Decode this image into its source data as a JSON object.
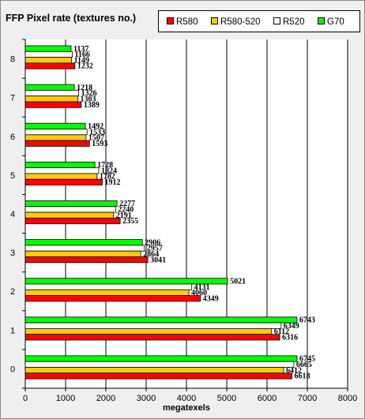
{
  "chart_data": {
    "type": "bar",
    "orientation": "horizontal",
    "title": "FFP Pixel rate (textures no.)",
    "xlabel": "megatexels",
    "ylabel": "",
    "xlim": [
      0,
      8000
    ],
    "xticks": [
      0,
      1000,
      2000,
      3000,
      4000,
      5000,
      6000,
      7000,
      8000
    ],
    "grid": "vertical",
    "legend_position": "top-right",
    "categories": [
      "0",
      "1",
      "2",
      "3",
      "4",
      "5",
      "6",
      "7",
      "8"
    ],
    "series": [
      {
        "name": "R580",
        "color": "#ff0000",
        "values": [
          6618,
          6316,
          4349,
          3041,
          2355,
          1912,
          1593,
          1389,
          1232
        ]
      },
      {
        "name": "R580-520",
        "color": "#ffcc00",
        "values": [
          6412,
          6112,
          4060,
          2864,
          2191,
          1782,
          1507,
          1303,
          1149
        ]
      },
      {
        "name": "R520",
        "color": "#ffffff",
        "values": [
          6665,
          6349,
          4131,
          2957,
          2240,
          1824,
          1533,
          1326,
          1166
        ]
      },
      {
        "name": "G70",
        "color": "#00ff00",
        "values": [
          6745,
          6743,
          5021,
          2906,
          2277,
          1728,
          1492,
          1218,
          1137
        ]
      }
    ]
  }
}
